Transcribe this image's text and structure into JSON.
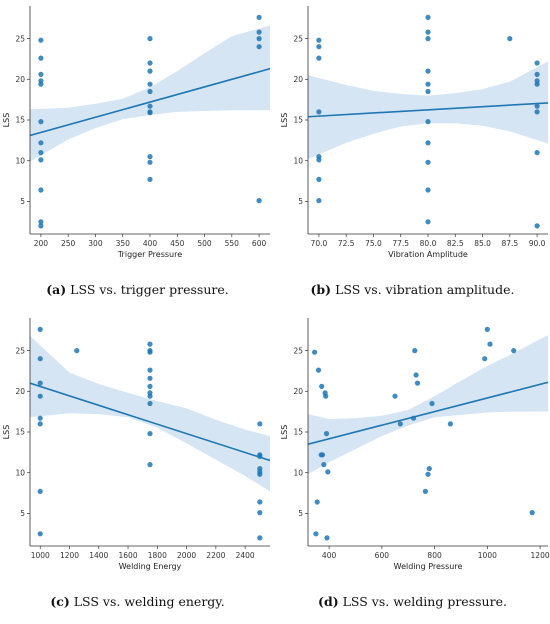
{
  "colors": {
    "accent": "#1f77b4",
    "band": "#cfe0f1",
    "axis": "#333333"
  },
  "captions": [
    {
      "tag": "(a)",
      "text": "LSS vs. trigger pressure."
    },
    {
      "tag": "(b)",
      "text": "LSS vs. vibration amplitude."
    },
    {
      "tag": "(c)",
      "text": "LSS vs. welding energy."
    },
    {
      "tag": "(d)",
      "text": "LSS vs. welding pressure."
    }
  ],
  "chart_data": [
    {
      "type": "scatter",
      "xlabel": "Trigger Pressure",
      "ylabel": "LSS",
      "xlim": [
        180,
        620
      ],
      "ylim": [
        1,
        29
      ],
      "xticks": [
        200,
        250,
        300,
        350,
        400,
        450,
        500,
        550,
        600
      ],
      "yticks": [
        5,
        10,
        15,
        20,
        25
      ],
      "points": [
        [
          200,
          24.8
        ],
        [
          200,
          22.6
        ],
        [
          200,
          20.6
        ],
        [
          200,
          19.8
        ],
        [
          200,
          19.4
        ],
        [
          200,
          14.8
        ],
        [
          200,
          12.2
        ],
        [
          200,
          11.0
        ],
        [
          200,
          10.1
        ],
        [
          200,
          6.4
        ],
        [
          200,
          2.5
        ],
        [
          200,
          2.0
        ],
        [
          400,
          25.0
        ],
        [
          400,
          22.0
        ],
        [
          400,
          21.0
        ],
        [
          400,
          19.4
        ],
        [
          400,
          18.5
        ],
        [
          400,
          16.7
        ],
        [
          400,
          16.0
        ],
        [
          400,
          15.9
        ],
        [
          400,
          10.5
        ],
        [
          400,
          9.8
        ],
        [
          400,
          7.7
        ],
        [
          600,
          27.6
        ],
        [
          600,
          25.8
        ],
        [
          600,
          25.0
        ],
        [
          600,
          24.0
        ],
        [
          600,
          5.1
        ]
      ],
      "regression": {
        "x": [
          180,
          620
        ],
        "y": [
          13.1,
          21.3
        ]
      },
      "ci_band": {
        "x": [
          180,
          250,
          300,
          350,
          400,
          450,
          500,
          550,
          620
        ],
        "lower": [
          9.9,
          12.6,
          14.0,
          15.1,
          15.6,
          16.0,
          16.1,
          16.2,
          16.2
        ],
        "upper": [
          16.3,
          16.5,
          17.0,
          17.6,
          19.0,
          21.0,
          23.2,
          25.3,
          26.6
        ]
      }
    },
    {
      "type": "scatter",
      "xlabel": "Vibration Amplitude",
      "ylabel": "LSS",
      "xlim": [
        69,
        91
      ],
      "ylim": [
        1,
        29
      ],
      "xticks": [
        70.0,
        72.5,
        75.0,
        77.5,
        80.0,
        82.5,
        85.0,
        87.5,
        90.0
      ],
      "yticks": [
        5,
        10,
        15,
        20,
        25
      ],
      "points": [
        [
          70,
          24.8
        ],
        [
          70,
          24.0
        ],
        [
          70,
          22.6
        ],
        [
          70,
          16.0
        ],
        [
          70,
          10.5
        ],
        [
          70,
          10.1
        ],
        [
          70,
          7.7
        ],
        [
          70,
          5.1
        ],
        [
          80,
          27.6
        ],
        [
          80,
          25.8
        ],
        [
          80,
          25.0
        ],
        [
          80,
          21.0
        ],
        [
          80,
          19.4
        ],
        [
          80,
          18.5
        ],
        [
          80,
          14.8
        ],
        [
          80,
          12.2
        ],
        [
          80,
          9.8
        ],
        [
          80,
          6.4
        ],
        [
          80,
          2.5
        ],
        [
          87.5,
          25.0
        ],
        [
          90,
          22.0
        ],
        [
          90,
          20.6
        ],
        [
          90,
          19.8
        ],
        [
          90,
          19.4
        ],
        [
          90,
          16.7
        ],
        [
          90,
          16.0
        ],
        [
          90,
          11.0
        ],
        [
          90,
          2.0
        ]
      ],
      "regression": {
        "x": [
          69,
          91
        ],
        "y": [
          15.4,
          17.1
        ]
      },
      "ci_band": {
        "x": [
          69,
          72.5,
          75,
          77.5,
          80,
          82.5,
          85,
          87.5,
          91
        ],
        "lower": [
          10.2,
          12.2,
          13.3,
          14.2,
          14.6,
          14.6,
          14.3,
          13.6,
          12.1
        ],
        "upper": [
          20.5,
          19.3,
          18.6,
          18.2,
          18.0,
          18.3,
          18.8,
          19.7,
          22.2
        ]
      }
    },
    {
      "type": "scatter",
      "xlabel": "Welding Energy",
      "ylabel": "LSS",
      "xlim": [
        930,
        2570
      ],
      "ylim": [
        1,
        29
      ],
      "xticks": [
        1000,
        1200,
        1400,
        1600,
        1800,
        2000,
        2200,
        2400
      ],
      "yticks": [
        5,
        10,
        15,
        20,
        25
      ],
      "points": [
        [
          1000,
          27.6
        ],
        [
          1000,
          24.0
        ],
        [
          1000,
          21.0
        ],
        [
          1000,
          19.4
        ],
        [
          1000,
          16.7
        ],
        [
          1000,
          16.0
        ],
        [
          1000,
          7.7
        ],
        [
          1000,
          2.5
        ],
        [
          1250,
          25.0
        ],
        [
          1750,
          25.8
        ],
        [
          1750,
          25.0
        ],
        [
          1750,
          24.8
        ],
        [
          1750,
          22.6
        ],
        [
          1750,
          21.6
        ],
        [
          1750,
          20.6
        ],
        [
          1750,
          19.8
        ],
        [
          1750,
          19.4
        ],
        [
          1750,
          18.5
        ],
        [
          1750,
          14.8
        ],
        [
          1750,
          11.0
        ],
        [
          2500,
          16.0
        ],
        [
          2500,
          12.2
        ],
        [
          2500,
          12.0
        ],
        [
          2500,
          10.5
        ],
        [
          2500,
          10.1
        ],
        [
          2500,
          9.8
        ],
        [
          2500,
          6.4
        ],
        [
          2500,
          5.1
        ],
        [
          2500,
          2.0
        ]
      ],
      "regression": {
        "x": [
          930,
          2570
        ],
        "y": [
          21.0,
          11.5
        ]
      },
      "ci_band": {
        "x": [
          930,
          1200,
          1400,
          1600,
          1800,
          2000,
          2200,
          2400,
          2570
        ],
        "lower": [
          16.8,
          17.3,
          17.2,
          16.8,
          15.5,
          13.6,
          11.6,
          9.6,
          7.7
        ],
        "upper": [
          26.8,
          22.3,
          20.9,
          19.8,
          18.8,
          17.9,
          16.5,
          15.3,
          14.5
        ]
      }
    },
    {
      "type": "scatter",
      "xlabel": "Welding Pressure",
      "ylabel": "LSS",
      "xlim": [
        320,
        1230
      ],
      "ylim": [
        1,
        29
      ],
      "xticks": [
        400,
        600,
        800,
        1000,
        1200
      ],
      "yticks": [
        5,
        10,
        15,
        20,
        25
      ],
      "points": [
        [
          345,
          24.8
        ],
        [
          355,
          6.4
        ],
        [
          350,
          2.5
        ],
        [
          360,
          22.6
        ],
        [
          370,
          12.2
        ],
        [
          372,
          20.6
        ],
        [
          375,
          12.2
        ],
        [
          380,
          11.0
        ],
        [
          385,
          19.8
        ],
        [
          387,
          19.4
        ],
        [
          390,
          14.8
        ],
        [
          392,
          2.0
        ],
        [
          395,
          10.1
        ],
        [
          650,
          19.4
        ],
        [
          670,
          16.0
        ],
        [
          720,
          16.7
        ],
        [
          725,
          25.0
        ],
        [
          730,
          22.0
        ],
        [
          735,
          21.0
        ],
        [
          765,
          7.7
        ],
        [
          775,
          9.8
        ],
        [
          780,
          10.5
        ],
        [
          790,
          18.5
        ],
        [
          860,
          16.0
        ],
        [
          990,
          24.0
        ],
        [
          1000,
          27.6
        ],
        [
          1010,
          25.8
        ],
        [
          1100,
          25.0
        ],
        [
          1170,
          5.1
        ]
      ],
      "regression": {
        "x": [
          320,
          1230
        ],
        "y": [
          13.5,
          21.1
        ]
      },
      "ci_band": {
        "x": [
          320,
          400,
          500,
          600,
          700,
          800,
          900,
          1000,
          1100,
          1230
        ],
        "lower": [
          9.8,
          11.3,
          12.9,
          14.5,
          15.8,
          16.8,
          17.1,
          17.4,
          17.5,
          17.5
        ],
        "upper": [
          17.2,
          16.6,
          16.7,
          17.0,
          17.7,
          19.4,
          21.3,
          23.1,
          24.7,
          26.9
        ]
      }
    }
  ]
}
